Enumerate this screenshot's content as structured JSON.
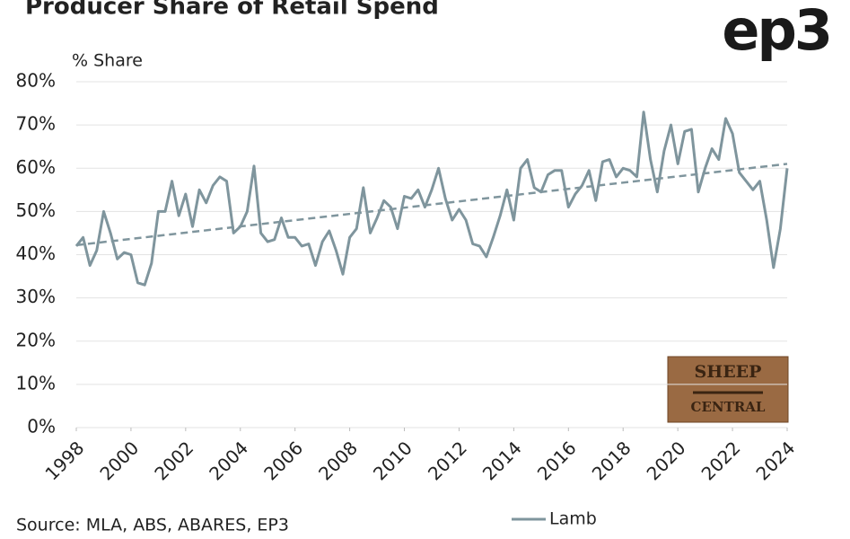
{
  "chart_data": {
    "type": "line",
    "title": "Producer Share of Retail Spend",
    "logo": "ep3",
    "y_label": "% Share",
    "source": "Source: MLA, ABS, ABARES, EP3",
    "watermark": [
      "SHEEP",
      "CENTRAL"
    ],
    "xlim": [
      1998,
      2024
    ],
    "xticks": [
      1998,
      2000,
      2002,
      2004,
      2006,
      2008,
      2010,
      2012,
      2014,
      2016,
      2018,
      2020,
      2022,
      2024
    ],
    "ylim": [
      0,
      80
    ],
    "yticks": [
      {
        "value": 0,
        "label": "0%"
      },
      {
        "value": 10,
        "label": "10%"
      },
      {
        "value": 20,
        "label": "20%"
      },
      {
        "value": 30,
        "label": "30%"
      },
      {
        "value": 40,
        "label": "40%"
      },
      {
        "value": 50,
        "label": "50%"
      },
      {
        "value": 60,
        "label": "60%"
      },
      {
        "value": 70,
        "label": "70%"
      },
      {
        "value": 80,
        "label": "80%"
      }
    ],
    "grid": true,
    "x": [
      1998,
      1998.25,
      1998.5,
      1998.75,
      1999,
      1999.25,
      1999.5,
      1999.75,
      2000,
      2000.25,
      2000.5,
      2000.75,
      2001,
      2001.25,
      2001.5,
      2001.75,
      2002,
      2002.25,
      2002.5,
      2002.75,
      2003,
      2003.25,
      2003.5,
      2003.75,
      2004,
      2004.25,
      2004.5,
      2004.75,
      2005,
      2005.25,
      2005.5,
      2005.75,
      2006,
      2006.25,
      2006.5,
      2006.75,
      2007,
      2007.25,
      2007.5,
      2007.75,
      2008,
      2008.25,
      2008.5,
      2008.75,
      2009,
      2009.25,
      2009.5,
      2009.75,
      2010,
      2010.25,
      2010.5,
      2010.75,
      2011,
      2011.25,
      2011.5,
      2011.75,
      2012,
      2012.25,
      2012.5,
      2012.75,
      2013,
      2013.25,
      2013.5,
      2013.75,
      2014,
      2014.25,
      2014.5,
      2014.75,
      2015,
      2015.25,
      2015.5,
      2015.75,
      2016,
      2016.25,
      2016.5,
      2016.75,
      2017,
      2017.25,
      2017.5,
      2017.75,
      2018,
      2018.25,
      2018.5,
      2018.75,
      2019,
      2019.25,
      2019.5,
      2019.75,
      2020,
      2020.25,
      2020.5,
      2020.75,
      2021,
      2021.25,
      2021.5,
      2021.75,
      2022,
      2022.25,
      2022.5,
      2022.75,
      2023,
      2023.25,
      2023.5,
      2023.75,
      2024
    ],
    "series": [
      {
        "name": "Lamb",
        "color": "#7f959d",
        "values": [
          42,
          44,
          37.5,
          41,
          50,
          45,
          39,
          40.5,
          40,
          33.5,
          33,
          38,
          50,
          50,
          57,
          49,
          54,
          46.5,
          55,
          52,
          56,
          58,
          57,
          45,
          46.5,
          50,
          60.5,
          45,
          43,
          43.5,
          48.5,
          44,
          44,
          42,
          42.5,
          37.5,
          43,
          45.5,
          41,
          35.5,
          44,
          46,
          55.5,
          45,
          48.5,
          52.5,
          51,
          46,
          53.5,
          53,
          55,
          51,
          55,
          60,
          53,
          48,
          50.5,
          48,
          42.5,
          42,
          39.5,
          44,
          49,
          55,
          48,
          60,
          62,
          55.5,
          54.5,
          58.5,
          59.5,
          59.5,
          51,
          54,
          56,
          59.5,
          52.5,
          61.5,
          62,
          58,
          60,
          59.5,
          58,
          73,
          62,
          54.5,
          64,
          70,
          61,
          68.5,
          69,
          54.5,
          60,
          64.5,
          62,
          71.5,
          68,
          59,
          57,
          55,
          57,
          48,
          37,
          46,
          60
        ]
      }
    ],
    "trend": {
      "x": [
        1998,
        2024
      ],
      "values": [
        42.2,
        61
      ],
      "color": "#7f959d"
    },
    "legend": "bottom"
  }
}
